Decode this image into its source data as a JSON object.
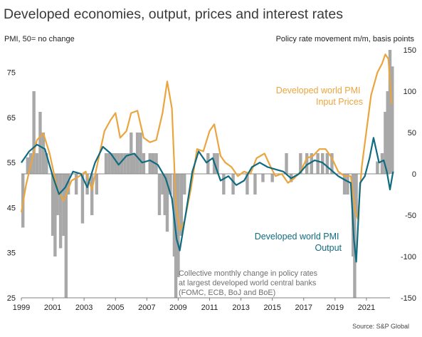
{
  "chart_data": {
    "type": "line+bar",
    "title": "Developed economies, output, prices and interest rates",
    "left_axis_label": "PMI, 50= no change",
    "right_axis_label": "Policy rate movement m/m, basis points",
    "left_ylim": [
      25,
      80
    ],
    "left_ticks": [
      25,
      35,
      45,
      55,
      65,
      75
    ],
    "right_ylim": [
      -150,
      150
    ],
    "right_ticks": [
      -150,
      -100,
      -50,
      0,
      50,
      100,
      150
    ],
    "x_ticks": [
      "1999",
      "2001",
      "2003",
      "2005",
      "2007",
      "2009",
      "2011",
      "2013",
      "2015",
      "2017",
      "2019",
      "2021"
    ],
    "x_start_year": 1999,
    "x_end_year": 2022.5,
    "series": [
      {
        "name": "Developed world PMI Output",
        "axis": "left",
        "color": "#0f6b80",
        "points": [
          [
            1999.0,
            55.0
          ],
          [
            1999.5,
            57.5
          ],
          [
            2000.0,
            59.0
          ],
          [
            2000.5,
            58.0
          ],
          [
            2001.0,
            52.0
          ],
          [
            2001.4,
            48.0
          ],
          [
            2001.8,
            49.5
          ],
          [
            2002.3,
            53.0
          ],
          [
            2002.8,
            52.5
          ],
          [
            2003.2,
            49.5
          ],
          [
            2003.7,
            55.0
          ],
          [
            2004.2,
            58.5
          ],
          [
            2004.7,
            57.0
          ],
          [
            2005.2,
            54.5
          ],
          [
            2005.7,
            56.5
          ],
          [
            2006.2,
            57.0
          ],
          [
            2006.7,
            55.0
          ],
          [
            2007.2,
            55.5
          ],
          [
            2007.7,
            54.5
          ],
          [
            2008.2,
            51.5
          ],
          [
            2008.6,
            47.0
          ],
          [
            2008.9,
            38.0
          ],
          [
            2009.1,
            35.5
          ],
          [
            2009.5,
            44.0
          ],
          [
            2009.9,
            53.0
          ],
          [
            2010.3,
            57.5
          ],
          [
            2010.8,
            55.0
          ],
          [
            2011.2,
            56.0
          ],
          [
            2011.7,
            51.0
          ],
          [
            2012.2,
            52.0
          ],
          [
            2012.7,
            50.0
          ],
          [
            2013.2,
            51.0
          ],
          [
            2013.7,
            54.0
          ],
          [
            2014.2,
            55.0
          ],
          [
            2014.7,
            54.0
          ],
          [
            2015.2,
            53.5
          ],
          [
            2015.7,
            53.0
          ],
          [
            2016.2,
            51.5
          ],
          [
            2016.7,
            52.5
          ],
          [
            2017.2,
            54.5
          ],
          [
            2017.7,
            55.5
          ],
          [
            2018.2,
            55.0
          ],
          [
            2018.7,
            53.5
          ],
          [
            2019.2,
            52.0
          ],
          [
            2019.7,
            51.0
          ],
          [
            2020.0,
            50.5
          ],
          [
            2020.2,
            38.0
          ],
          [
            2020.35,
            33.0
          ],
          [
            2020.6,
            50.5
          ],
          [
            2020.9,
            52.0
          ],
          [
            2021.2,
            56.0
          ],
          [
            2021.45,
            60.5
          ],
          [
            2021.8,
            55.0
          ],
          [
            2022.1,
            55.5
          ],
          [
            2022.3,
            53.0
          ],
          [
            2022.5,
            49.0
          ],
          [
            2022.7,
            53.0
          ]
        ]
      },
      {
        "name": "Developed world PMI Input Prices",
        "axis": "left",
        "color": "#eba53f",
        "points": [
          [
            1999.0,
            44.0
          ],
          [
            1999.3,
            50.0
          ],
          [
            1999.7,
            56.0
          ],
          [
            2000.0,
            60.0
          ],
          [
            2000.4,
            61.5
          ],
          [
            2000.8,
            57.0
          ],
          [
            2001.3,
            49.0
          ],
          [
            2001.7,
            46.5
          ],
          [
            2002.2,
            51.0
          ],
          [
            2002.7,
            52.0
          ],
          [
            2003.1,
            53.0
          ],
          [
            2003.5,
            49.0
          ],
          [
            2003.9,
            55.5
          ],
          [
            2004.3,
            62.0
          ],
          [
            2004.7,
            64.5
          ],
          [
            2005.0,
            66.0
          ],
          [
            2005.3,
            60.5
          ],
          [
            2005.7,
            62.0
          ],
          [
            2006.0,
            66.0
          ],
          [
            2006.4,
            66.5
          ],
          [
            2006.8,
            60.5
          ],
          [
            2007.2,
            59.5
          ],
          [
            2007.6,
            60.0
          ],
          [
            2008.0,
            66.0
          ],
          [
            2008.3,
            73.0
          ],
          [
            2008.6,
            67.0
          ],
          [
            2008.85,
            46.0
          ],
          [
            2009.1,
            40.0
          ],
          [
            2009.4,
            42.0
          ],
          [
            2009.8,
            49.0
          ],
          [
            2010.2,
            58.0
          ],
          [
            2010.6,
            57.5
          ],
          [
            2011.0,
            62.0
          ],
          [
            2011.3,
            63.5
          ],
          [
            2011.7,
            56.5
          ],
          [
            2012.0,
            55.0
          ],
          [
            2012.4,
            54.0
          ],
          [
            2012.8,
            52.0
          ],
          [
            2013.2,
            53.0
          ],
          [
            2013.6,
            52.5
          ],
          [
            2014.0,
            56.0
          ],
          [
            2014.5,
            57.0
          ],
          [
            2014.9,
            54.0
          ],
          [
            2015.2,
            52.0
          ],
          [
            2015.6,
            52.5
          ],
          [
            2016.0,
            50.5
          ],
          [
            2016.4,
            51.5
          ],
          [
            2016.8,
            53.0
          ],
          [
            2017.2,
            56.0
          ],
          [
            2017.6,
            56.5
          ],
          [
            2018.0,
            58.0
          ],
          [
            2018.4,
            58.0
          ],
          [
            2018.8,
            56.0
          ],
          [
            2019.2,
            53.0
          ],
          [
            2019.6,
            52.0
          ],
          [
            2020.0,
            52.0
          ],
          [
            2020.3,
            44.0
          ],
          [
            2020.45,
            42.5
          ],
          [
            2020.7,
            54.0
          ],
          [
            2021.0,
            62.0
          ],
          [
            2021.3,
            70.0
          ],
          [
            2021.7,
            75.0
          ],
          [
            2022.0,
            77.0
          ],
          [
            2022.2,
            79.0
          ],
          [
            2022.4,
            78.0
          ],
          [
            2022.6,
            68.0
          ]
        ]
      }
    ],
    "bars": {
      "name": "Collective monthly change in policy rates at largest developed world central banks (FOMC, ECB, BoJ and BoE)",
      "axis": "right",
      "color": "#a8a8a8",
      "values": [
        [
          1999.1,
          -65
        ],
        [
          1999.4,
          20
        ],
        [
          1999.6,
          25
        ],
        [
          1999.8,
          100
        ],
        [
          2000.0,
          25
        ],
        [
          2000.2,
          75
        ],
        [
          2000.4,
          50
        ],
        [
          2000.6,
          25
        ],
        [
          2001.0,
          -75
        ],
        [
          2001.15,
          -100
        ],
        [
          2001.3,
          -50
        ],
        [
          2001.5,
          -90
        ],
        [
          2001.7,
          -75
        ],
        [
          2001.85,
          -150
        ],
        [
          2002.0,
          -25
        ],
        [
          2002.5,
          -25
        ],
        [
          2002.9,
          -60
        ],
        [
          2003.2,
          -25
        ],
        [
          2003.5,
          -50
        ],
        [
          2003.8,
          -25
        ],
        [
          2004.4,
          25
        ],
        [
          2004.6,
          25
        ],
        [
          2004.8,
          25
        ],
        [
          2005.0,
          25
        ],
        [
          2005.2,
          25
        ],
        [
          2005.4,
          25
        ],
        [
          2005.6,
          25
        ],
        [
          2005.8,
          25
        ],
        [
          2006.0,
          50
        ],
        [
          2006.2,
          25
        ],
        [
          2006.4,
          50
        ],
        [
          2006.6,
          50
        ],
        [
          2006.8,
          25
        ],
        [
          2007.2,
          25
        ],
        [
          2007.4,
          25
        ],
        [
          2007.6,
          25
        ],
        [
          2007.8,
          -50
        ],
        [
          2008.0,
          -25
        ],
        [
          2008.15,
          -50
        ],
        [
          2008.3,
          -70
        ],
        [
          2008.5,
          -25
        ],
        [
          2008.75,
          -100
        ],
        [
          2008.85,
          -150
        ],
        [
          2009.0,
          -125
        ],
        [
          2009.2,
          -75
        ],
        [
          2009.4,
          -25
        ],
        [
          2010.9,
          25
        ],
        [
          2011.3,
          25
        ],
        [
          2011.5,
          25
        ],
        [
          2011.9,
          -25
        ],
        [
          2012.5,
          -25
        ],
        [
          2013.4,
          -25
        ],
        [
          2013.9,
          -25
        ],
        [
          2014.4,
          -10
        ],
        [
          2015.0,
          -10
        ],
        [
          2015.9,
          25
        ],
        [
          2016.2,
          -10
        ],
        [
          2016.8,
          25
        ],
        [
          2017.2,
          25
        ],
        [
          2017.5,
          25
        ],
        [
          2017.9,
          25
        ],
        [
          2018.2,
          25
        ],
        [
          2018.5,
          25
        ],
        [
          2018.8,
          25
        ],
        [
          2019.6,
          -25
        ],
        [
          2019.8,
          -25
        ],
        [
          2020.15,
          -100
        ],
        [
          2020.25,
          -150
        ],
        [
          2020.35,
          -50
        ],
        [
          2021.7,
          15
        ],
        [
          2022.0,
          25
        ],
        [
          2022.2,
          75
        ],
        [
          2022.35,
          100
        ],
        [
          2022.5,
          150
        ],
        [
          2022.65,
          130
        ]
      ]
    },
    "annotations": {
      "input_prices": [
        "Developed world PMI",
        "Input Prices"
      ],
      "output": [
        "Developed world PMI",
        "Output"
      ],
      "bars": [
        "Collective monthly change in policy rates",
        "at largest developed world central banks",
        "(FOMC, ECB, BoJ and BoE)"
      ]
    },
    "source": "Source: S&P Global",
    "colors": {
      "output": "#0f6b80",
      "input": "#eba53f",
      "bars": "#a8a8a8",
      "zero_line": "#8a8a8a"
    }
  }
}
